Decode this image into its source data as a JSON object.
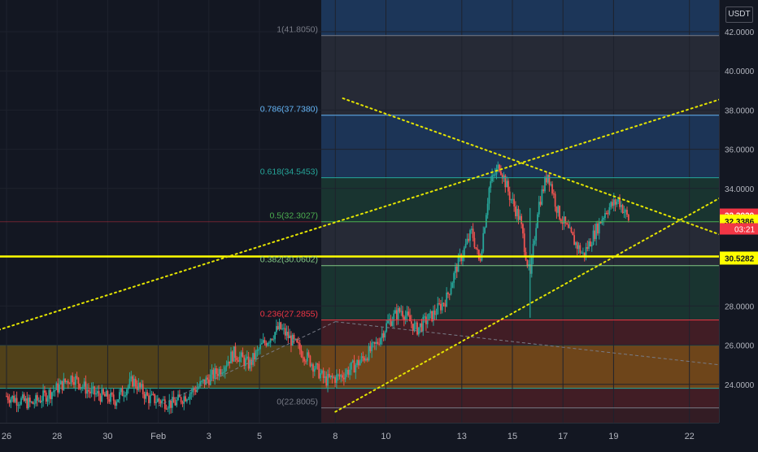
{
  "currency": "USDT",
  "price_axis": {
    "ticks": [
      {
        "value": 42,
        "label": "42.0000"
      },
      {
        "value": 40,
        "label": "40.0000"
      },
      {
        "value": 38,
        "label": "38.0000"
      },
      {
        "value": 36,
        "label": "36.0000"
      },
      {
        "value": 34,
        "label": "34.0000"
      },
      {
        "value": 28,
        "label": "28.0000"
      },
      {
        "value": 26,
        "label": "26.0000"
      },
      {
        "value": 24,
        "label": "24.0000"
      }
    ]
  },
  "time_axis": {
    "ticks": [
      {
        "t": 0,
        "label": "26"
      },
      {
        "t": 2,
        "label": "28"
      },
      {
        "t": 4,
        "label": "30"
      },
      {
        "t": 6,
        "label": "Feb"
      },
      {
        "t": 8,
        "label": "3"
      },
      {
        "t": 10,
        "label": "5"
      },
      {
        "t": 13,
        "label": "8"
      },
      {
        "t": 15,
        "label": "10"
      },
      {
        "t": 18,
        "label": "13"
      },
      {
        "t": 20,
        "label": "15"
      },
      {
        "t": 22,
        "label": "17"
      },
      {
        "t": 24,
        "label": "19"
      },
      {
        "t": 27,
        "label": "22"
      }
    ]
  },
  "price_badges": [
    {
      "value": 32.3929,
      "label": "32.3929",
      "bg": "#f23645",
      "fg": "#ffffff"
    },
    {
      "value": 32.3386,
      "label": "32.3386",
      "bg": "#ffff00",
      "fg": "#131722"
    },
    {
      "value": 30.5282,
      "label": "30.5282",
      "bg": "#ffff00",
      "fg": "#131722"
    }
  ],
  "countdown": "03:21",
  "fib_levels": [
    {
      "level": "1",
      "price": 41.805,
      "label": "1(41.8050)",
      "color": "#787b86"
    },
    {
      "level": "0.786",
      "price": 37.738,
      "label": "0.786(37.7380)",
      "color": "#64b5f6"
    },
    {
      "level": "0.618",
      "price": 34.5453,
      "label": "0.618(34.5453)",
      "color": "#26a69a"
    },
    {
      "level": "0.5",
      "price": 32.3027,
      "label": "0.5(32.3027)",
      "color": "#4caf50"
    },
    {
      "level": "0.382",
      "price": 30.0602,
      "label": "0.382(30.0602)",
      "color": "#81c784"
    },
    {
      "level": "0.236",
      "price": 27.2855,
      "label": "0.236(27.2855)",
      "color": "#f23645"
    },
    {
      "level": "0",
      "price": 22.8005,
      "label": "0(22.8005)",
      "color": "#787b86"
    }
  ],
  "horizontal_lines": [
    {
      "price": 30.5282,
      "color": "#ffff00"
    }
  ],
  "colors": {
    "background": "#131722",
    "grid": "#1e222d",
    "candle_up": "#26a69a",
    "candle_down": "#ef5350",
    "trendline": "#e5e500",
    "fib_zone_top": "#1e3a5f",
    "fib_zone_gray": "#2a2e39",
    "fib_zone_green": "#1b3a33",
    "fib_zone_red": "#4a1f26",
    "support_zone": "#b8860b"
  },
  "chart_data": {
    "type": "candlestick",
    "x_axis": "time",
    "y_axis": "price (USDT)",
    "ylim": [
      22.5,
      44
    ],
    "close_path": [
      {
        "t": 0,
        "p": 23.4
      },
      {
        "t": 1,
        "p": 23.0
      },
      {
        "t": 2,
        "p": 23.8
      },
      {
        "t": 2.6,
        "p": 24.4
      },
      {
        "t": 3.3,
        "p": 23.6
      },
      {
        "t": 4.3,
        "p": 23.2
      },
      {
        "t": 5,
        "p": 24.2
      },
      {
        "t": 5.6,
        "p": 23.3
      },
      {
        "t": 6.6,
        "p": 23.0
      },
      {
        "t": 7.5,
        "p": 23.8
      },
      {
        "t": 8.4,
        "p": 24.7
      },
      {
        "t": 9.0,
        "p": 25.6
      },
      {
        "t": 9.6,
        "p": 25.0
      },
      {
        "t": 10.1,
        "p": 26.0
      },
      {
        "t": 10.8,
        "p": 26.9
      },
      {
        "t": 11.3,
        "p": 26.2
      },
      {
        "t": 12.0,
        "p": 25.2
      },
      {
        "t": 12.6,
        "p": 24.2
      },
      {
        "t": 13.2,
        "p": 24.4
      },
      {
        "t": 14.0,
        "p": 25.2
      },
      {
        "t": 14.6,
        "p": 26.0
      },
      {
        "t": 15.1,
        "p": 27.2
      },
      {
        "t": 15.6,
        "p": 27.8
      },
      {
        "t": 16.2,
        "p": 26.8
      },
      {
        "t": 16.9,
        "p": 27.6
      },
      {
        "t": 17.4,
        "p": 28.4
      },
      {
        "t": 17.8,
        "p": 30.0
      },
      {
        "t": 18.4,
        "p": 31.8
      },
      {
        "t": 18.7,
        "p": 30.2
      },
      {
        "t": 19.1,
        "p": 34.2
      },
      {
        "t": 19.5,
        "p": 35.2
      },
      {
        "t": 19.9,
        "p": 33.6
      },
      {
        "t": 20.3,
        "p": 32.4
      },
      {
        "t": 20.7,
        "p": 29.4
      },
      {
        "t": 21.0,
        "p": 33.0
      },
      {
        "t": 21.4,
        "p": 34.8
      },
      {
        "t": 21.8,
        "p": 32.8
      },
      {
        "t": 22.3,
        "p": 31.6
      },
      {
        "t": 22.8,
        "p": 30.6
      },
      {
        "t": 23.2,
        "p": 31.6
      },
      {
        "t": 23.7,
        "p": 32.9
      },
      {
        "t": 24.2,
        "p": 33.4
      },
      {
        "t": 24.6,
        "p": 32.4
      }
    ],
    "trendlines": [
      {
        "name": "rising-trendline",
        "from": {
          "t": -0.5,
          "p": 26.7
        },
        "to": {
          "t": 31,
          "p": 39.7
        }
      },
      {
        "name": "falling-trendline",
        "from": {
          "t": 13.3,
          "p": 38.6
        },
        "to": {
          "t": 28.3,
          "p": 31.6
        }
      },
      {
        "name": "support-trendline",
        "from": {
          "t": 13.0,
          "p": 22.6
        },
        "to": {
          "t": 28.6,
          "p": 33.8
        }
      }
    ],
    "support_zone": {
      "from": 23.8,
      "to": 26.0
    }
  }
}
